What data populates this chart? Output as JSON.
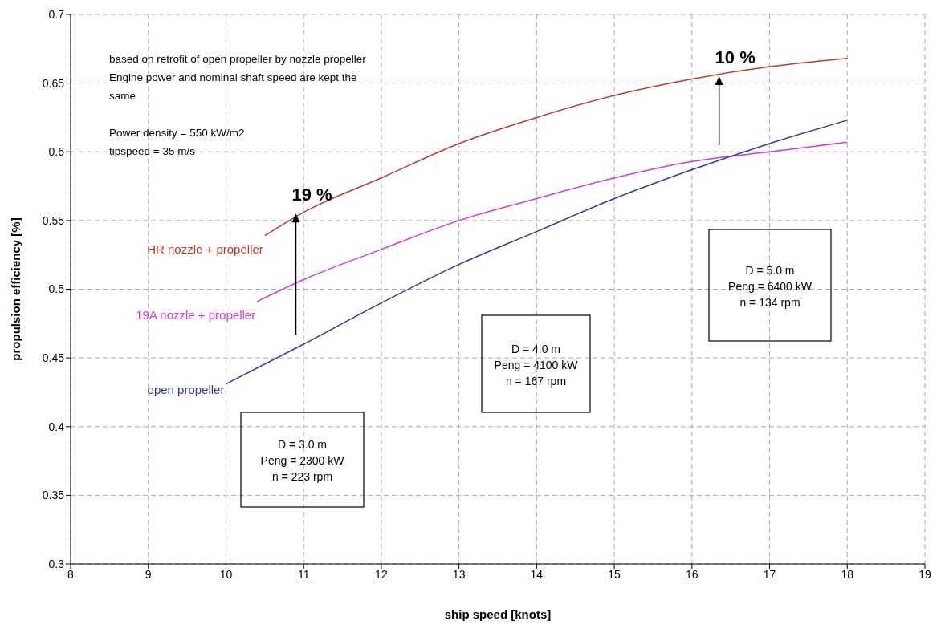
{
  "chart_data": {
    "type": "line",
    "xlabel": "ship speed [knots]",
    "ylabel": "propulsion efficiency [%]",
    "xlim": [
      8,
      19
    ],
    "xticks": [
      8,
      9,
      10,
      11,
      12,
      13,
      14,
      15,
      16,
      17,
      18,
      19
    ],
    "ylim": [
      0.3,
      0.7
    ],
    "yticks": [
      0.3,
      0.35,
      0.4,
      0.45,
      0.5,
      0.55,
      0.6,
      0.65,
      0.7
    ],
    "grid": true,
    "legend": false,
    "marker": "none",
    "line_style": "solid",
    "series": [
      {
        "name": "HR nozzle + propeller",
        "color": "#c0392b",
        "x": [
          10.5,
          11,
          12,
          13,
          14,
          15,
          16,
          17,
          18
        ],
        "values": [
          0.539,
          0.556,
          0.581,
          0.606,
          0.625,
          0.641,
          0.653,
          0.662,
          0.668
        ]
      },
      {
        "name": "19A nozzle + propeller",
        "color": "#d63ad6",
        "x": [
          10.4,
          11,
          12,
          13,
          14,
          15,
          16,
          17,
          18
        ],
        "values": [
          0.491,
          0.507,
          0.529,
          0.55,
          0.566,
          0.581,
          0.593,
          0.6,
          0.607
        ]
      },
      {
        "name": "open propeller",
        "color": "#2e3a9e",
        "x": [
          10,
          11,
          12,
          13,
          14,
          15,
          16,
          17,
          18
        ],
        "values": [
          0.431,
          0.46,
          0.49,
          0.518,
          0.542,
          0.566,
          0.587,
          0.606,
          0.623
        ]
      }
    ],
    "annotations": [
      "based on retrofit of open propeller by nozzle propeller\nEngine power and nominal shaft speed are kept the\nsame\n\nPower density = 550 kW/m2\ntipspeed = 35 m/s",
      {
        "text": "19 %",
        "x": 10.9,
        "y": 0.555
      },
      {
        "text": "10 %",
        "x": 16.35,
        "y": 0.655
      },
      "D = 3.0 m\nPeng = 2300 kW\nn = 223 rpm",
      "D = 4.0 m\nPeng = 4100 kW\nn = 167 rpm",
      "D = 5.0 m\nPeng = 6400 kW\nn = 134 rpm"
    ]
  }
}
